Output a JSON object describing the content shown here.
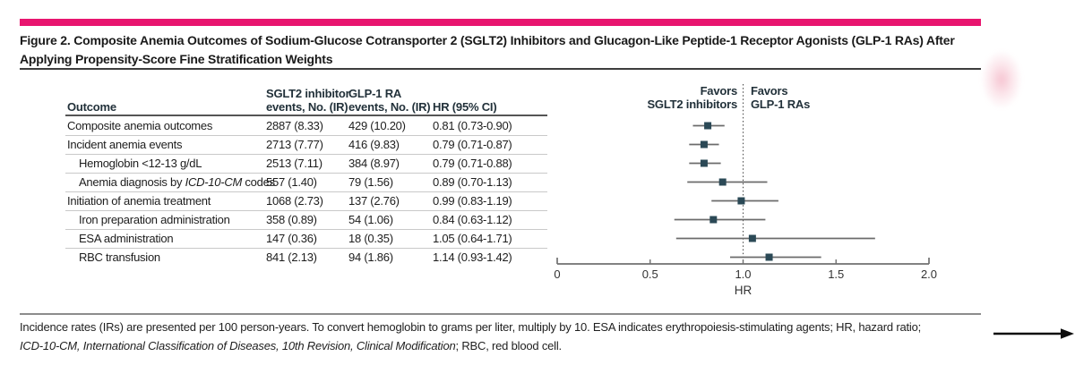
{
  "figure": {
    "title_lines": [
      "Figure 2. Composite Anemia Outcomes of Sodium-Glucose Cotransporter 2 (SGLT2) Inhibitors and Glucagon-Like Peptide-1 Receptor Agonists (GLP-1 RAs) After",
      "Applying Propensity-Score Fine Stratification Weights"
    ],
    "accent_color": "#e8156f"
  },
  "table": {
    "header": {
      "outcome": "Outcome",
      "col2_line1": "SGLT2 inhibitor",
      "col2_line2": "events, No. (IR)",
      "col3_line1": "GLP-1 RA",
      "col3_line2": "events, No. (IR)",
      "col4": "HR (95% CI)"
    },
    "rows": [
      {
        "label_parts": [
          {
            "t": "Composite anemia outcomes",
            "i": false
          }
        ],
        "indent": 0,
        "sglt2": "2887 (8.33)",
        "glp1": "429 (10.20)",
        "hr_ci": "0.81 (0.73-0.90)"
      },
      {
        "label_parts": [
          {
            "t": "Incident anemia events",
            "i": false
          }
        ],
        "indent": 0,
        "sglt2": "2713 (7.77)",
        "glp1": "416 (9.83)",
        "hr_ci": "0.79 (0.71-0.87)"
      },
      {
        "label_parts": [
          {
            "t": "Hemoglobin <12-13 g/dL",
            "i": false
          }
        ],
        "indent": 1,
        "sglt2": "2513 (7.11)",
        "glp1": "384 (8.97)",
        "hr_ci": "0.79 (0.71-0.88)"
      },
      {
        "label_parts": [
          {
            "t": "Anemia diagnosis by ",
            "i": false
          },
          {
            "t": "ICD-10-CM",
            "i": true
          },
          {
            "t": " codes",
            "i": false
          }
        ],
        "indent": 1,
        "sglt2": "557 (1.40)",
        "glp1": "79 (1.56)",
        "hr_ci": "0.89 (0.70-1.13)"
      },
      {
        "label_parts": [
          {
            "t": "Initiation of anemia treatment",
            "i": false
          }
        ],
        "indent": 0,
        "sglt2": "1068 (2.73)",
        "glp1": "137 (2.76)",
        "hr_ci": "0.99 (0.83-1.19)"
      },
      {
        "label_parts": [
          {
            "t": "Iron preparation administration",
            "i": false
          }
        ],
        "indent": 1,
        "sglt2": "358 (0.89)",
        "glp1": "54 (1.06)",
        "hr_ci": "0.84 (0.63-1.12)"
      },
      {
        "label_parts": [
          {
            "t": "ESA administration",
            "i": false
          }
        ],
        "indent": 1,
        "sglt2": "147 (0.36)",
        "glp1": "18 (0.35)",
        "hr_ci": "1.05 (0.64-1.71)"
      },
      {
        "label_parts": [
          {
            "t": "RBC transfusion",
            "i": false
          }
        ],
        "indent": 1,
        "sglt2": "841 (2.13)",
        "glp1": "94 (1.86)",
        "hr_ci": "1.14 (0.93-1.42)"
      }
    ]
  },
  "chart_data": {
    "type": "scatter",
    "subtype": "forest-plot",
    "points": [
      {
        "label": "Composite anemia outcomes",
        "hr": 0.81,
        "ci_low": 0.73,
        "ci_high": 0.9
      },
      {
        "label": "Incident anemia events",
        "hr": 0.79,
        "ci_low": 0.71,
        "ci_high": 0.87
      },
      {
        "label": "Hemoglobin <12-13 g/dL",
        "hr": 0.79,
        "ci_low": 0.71,
        "ci_high": 0.88
      },
      {
        "label": "Anemia diagnosis by ICD-10-CM codes",
        "hr": 0.89,
        "ci_low": 0.7,
        "ci_high": 1.13
      },
      {
        "label": "Initiation of anemia treatment",
        "hr": 0.99,
        "ci_low": 0.83,
        "ci_high": 1.19
      },
      {
        "label": "Iron preparation administration",
        "hr": 0.84,
        "ci_low": 0.63,
        "ci_high": 1.12
      },
      {
        "label": "ESA administration",
        "hr": 1.05,
        "ci_low": 0.64,
        "ci_high": 1.71
      },
      {
        "label": "RBC transfusion",
        "hr": 1.14,
        "ci_low": 0.93,
        "ci_high": 1.42
      }
    ],
    "xlabel": "HR",
    "xlim": [
      0,
      2.0
    ],
    "x_ticks": [
      0,
      0.5,
      1.0,
      1.5,
      2.0
    ],
    "x_tick_labels": [
      "0",
      "0.5",
      "1.0",
      "1.5",
      "2.0"
    ],
    "reference_line": 1.0,
    "favors_left_lines": [
      "Favors",
      "SGLT2 inhibitors"
    ],
    "favors_right_lines": [
      "Favors",
      "GLP-1 RAs"
    ],
    "marker_color": "#2b4956",
    "ci_color": "#6b6b6b",
    "axis_color": "#707070",
    "tick_label_color": "#333333"
  },
  "footnote": {
    "line1": "Incidence rates (IRs) are presented per 100 person-years. To convert hemoglobin to grams per liter, multiply by 10. ESA indicates erythropoiesis-stimulating agents; HR, hazard ratio;",
    "line2_italic": "ICD-10-CM, International Classification of Diseases, 10th Revision, Clinical Modification",
    "line2_rest": "; RBC, red blood cell."
  }
}
